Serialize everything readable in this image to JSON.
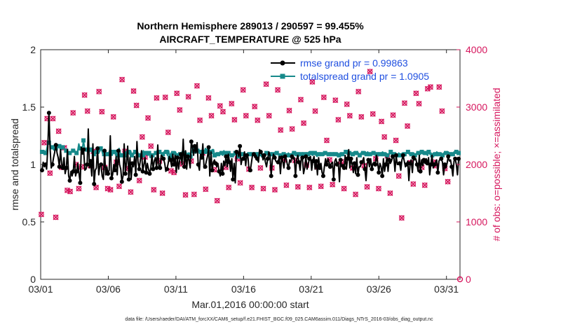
{
  "chart_data": {
    "type": "line",
    "title_line1": "Northern Hemisphere 289013 / 290597 = 99.455%",
    "title_line2": "AIRCRAFT_TEMPERATURE @ 525 hPa",
    "xlabel": "Mar.01,2016 00:00:00 start",
    "ylabel_left": "rmse and totalspread",
    "ylabel_right": "# of obs: o=possible; ×=assimilated",
    "footer": "data file: /Users/raeder/DAI/ATM_forcXX/CAM6_setup/f.e21.FHIST_BGC.f09_025.CAM6assim.011/Diags_NTrS_2016-03/obs_diag_output.nc",
    "x_ticks": [
      {
        "day": 0,
        "label": "03/01"
      },
      {
        "day": 5,
        "label": "03/06"
      },
      {
        "day": 10,
        "label": "03/11"
      },
      {
        "day": 15,
        "label": "03/16"
      },
      {
        "day": 20,
        "label": "03/21"
      },
      {
        "day": 25,
        "label": "03/26"
      },
      {
        "day": 30,
        "label": "03/31"
      }
    ],
    "xlim": [
      0,
      31
    ],
    "ylim_left": [
      0,
      2
    ],
    "yticks_left": [
      "0",
      "0.5",
      "1",
      "1.5",
      "2"
    ],
    "ylim_right": [
      0,
      4000
    ],
    "yticks_right": [
      "0",
      "1000",
      "2000",
      "3000",
      "4000"
    ],
    "colors": {
      "rmse": "#000000",
      "spread": "#16898a",
      "obs": "#d6175e",
      "legend_text": "#1f4fe0"
    },
    "series": [
      {
        "name": "rmse grand pr = 0.99863",
        "values": [
          0.95,
          1.02,
          0.98,
          1.0,
          0.96,
          1.15,
          1.45,
          1.13,
          0.97,
          1.0,
          1.06,
          1.11,
          1.17,
          1.1,
          1.06,
          0.98,
          1.13,
          1.0,
          0.97,
          1.06,
          0.92,
          0.97,
          1.13,
          0.9,
          0.86,
          0.94,
          0.9,
          0.94,
          1.07,
          0.9,
          0.94,
          1.01,
          0.92,
          0.84,
          1.15,
          1.09,
          1.13,
          0.95,
          0.96,
          1.0,
          1.31,
          0.97,
          1.03,
          0.9,
          1.18,
          0.83,
          0.95,
          0.97,
          1.14,
          0.91,
          0.99,
          1.0,
          0.9,
          0.87,
          1.12,
          0.91,
          0.98,
          0.92,
          0.95,
          1.25,
          0.88,
          0.91,
          1.0,
          0.95,
          1.07,
          0.91,
          1.12,
          1.0,
          0.96,
          0.85,
          0.9,
          1.18,
          0.92,
          1.02,
          1.16,
          0.87,
          1.06,
          0.87,
          1.01,
          0.98,
          1.07,
          0.91,
          1.2,
          1.02,
          0.96,
          1.04,
          1.12,
          0.94,
          1.0,
          1.06,
          0.93,
          1.01,
          0.96,
          0.92,
          0.97,
          1.08,
          0.96,
          1.03,
          1.06,
          0.97,
          1.17,
          0.98,
          0.97,
          1.08,
          1.07,
          1.05,
          1.01,
          0.94,
          0.96,
          1.01,
          1.07,
          1.04,
          0.98,
          1.09,
          1.0,
          1.08,
          0.93,
          1.06,
          0.96,
          1.04,
          1.09,
          1.0,
          1.22,
          0.98,
          1.12,
          0.96,
          1.07,
          1.04,
          0.97,
          1.2,
          1.15,
          1.08,
          1.16,
          1.1,
          1.19,
          1.0,
          0.95,
          1.09,
          1.06,
          1.18,
          0.97,
          0.98,
          1.03,
          1.07,
          1.15,
          0.9,
          1.11,
          0.95,
          1.02,
          1.04,
          1.01,
          0.98,
          1.01,
          0.94,
          0.9,
          1.01,
          0.92,
          1.03,
          0.99,
          1.07,
          0.98,
          1.09,
          1.02,
          0.94,
          1.05,
          0.87,
          1.01,
          0.84,
          1.11,
          1.12,
          1.07,
          1.16,
          1.0,
          1.05,
          1.05,
          1.11,
          0.99,
          1.08,
          1.06,
          0.94,
          0.95,
          1.02,
          1.09,
          1.09,
          1.06,
          1.08,
          1.05,
          1.02,
          1.13,
          1.11,
          1.09,
          1.04,
          1.08,
          1.02,
          0.98,
          1.05,
          1.11,
          1.08,
          0.9,
          1.04,
          1.09,
          1.06,
          1.03,
          1.02,
          1.02,
          1.07,
          0.92,
          1.06,
          1.03,
          0.97,
          1.07,
          1.05,
          1.0,
          0.97,
          1.04,
          1.02,
          1.07,
          1.05,
          1.06,
          0.9,
          1.04,
          1.08,
          1.02,
          0.95,
          1.05,
          1.06,
          0.92,
          0.97,
          1.07,
          0.96,
          1.0,
          1.05,
          1.07,
          0.95,
          1.03,
          1.07,
          0.96,
          1.03,
          0.91,
          1.06,
          0.97,
          1.01,
          0.93,
          0.9,
          0.98,
          1.05,
          1.0,
          1.05,
          1.02,
          0.98,
          1.01,
          1.02,
          0.87,
          1.03,
          1.05,
          1.0,
          1.02,
          0.85,
          1.04,
          0.98,
          1.0,
          0.97,
          1.08,
          0.96,
          1.05,
          1.13,
          0.97,
          1.05,
          1.0,
          0.93,
          1.01,
          0.92,
          1.06,
          0.91,
          0.98,
          0.98,
          1.02,
          1.03,
          1.06,
          0.96,
          0.86,
          1.01,
          1.04,
          0.98,
          1.05,
          0.96,
          1.01,
          1.02,
          1.0,
          1.08,
          1.02,
          0.93,
          1.01,
          0.98,
          0.9,
          1.05,
          0.94,
          1.0,
          1.06,
          0.94,
          1.04,
          1.01,
          1.03,
          1.07,
          1.07,
          0.94,
          1.08,
          1.0,
          1.0,
          1.01,
          0.95,
          1.04,
          1.08,
          1.03,
          0.98,
          1.0,
          1.03,
          0.86,
          1.01,
          1.04,
          0.93,
          1.06,
          1.04,
          1.05,
          1.0,
          0.94,
          1.08,
          0.94,
          1.04,
          0.99,
          1.04,
          1.01,
          1.05,
          1.01,
          1.06,
          0.91,
          1.0,
          1.08,
          0.97,
          1.0,
          1.02,
          1.04,
          0.93,
          1.03,
          1.05,
          1.05,
          1.02,
          0.91,
          1.0,
          0.97,
          1.01,
          1.07,
          1.03,
          1.04,
          0.98,
          0.9,
          1.03,
          1.05,
          1.0,
          0.91,
          1.05
        ]
      },
      {
        "name": "totalspread grand pr = 1.0905",
        "values": [
          1.11,
          1.1,
          1.12,
          1.1,
          1.13,
          1.18,
          1.19,
          1.18,
          1.14,
          1.15,
          1.13,
          1.12,
          1.14,
          1.15,
          1.17,
          1.16,
          1.13,
          1.13,
          1.15,
          1.14,
          1.12,
          1.12,
          1.12,
          1.11,
          1.1,
          1.11,
          1.11,
          1.12,
          1.13,
          1.11,
          1.1,
          1.12,
          1.18,
          1.14,
          1.13,
          1.13,
          1.21,
          1.14,
          1.13,
          1.13,
          1.12,
          1.11,
          1.13,
          1.11,
          1.11,
          1.09,
          1.12,
          1.11,
          1.11,
          1.1,
          1.11,
          1.14,
          1.12,
          1.08,
          1.09,
          1.11,
          1.1,
          1.09,
          1.1,
          1.13,
          1.11,
          1.08,
          1.11,
          1.11,
          1.08,
          1.1,
          1.08,
          1.14,
          1.1,
          1.08,
          1.07,
          1.07,
          1.08,
          1.11,
          1.09,
          1.11,
          1.09,
          1.12,
          1.08,
          1.1,
          1.09,
          1.11,
          1.09,
          1.11,
          1.08,
          1.09,
          1.09,
          1.08,
          1.12,
          1.07,
          1.1,
          1.1,
          1.08,
          1.1,
          1.06,
          1.08,
          1.08,
          1.09,
          1.1,
          1.1,
          1.12,
          1.09,
          1.11,
          1.1,
          1.09,
          1.09,
          1.11,
          1.12,
          1.11,
          1.08,
          1.12,
          1.06,
          1.1,
          1.07,
          1.1,
          1.09,
          1.11,
          1.08,
          1.07,
          1.09,
          1.09,
          1.08,
          1.08,
          1.1,
          1.1,
          1.11,
          1.08,
          1.1,
          1.1,
          1.07,
          1.12,
          1.1,
          1.13,
          1.1,
          1.12,
          1.12,
          1.12,
          1.12,
          1.11,
          1.11,
          1.1,
          1.11,
          1.14,
          1.1,
          1.12,
          1.1,
          1.09,
          1.11,
          1.13,
          1.13,
          1.08,
          1.1,
          1.1,
          1.09,
          1.09,
          1.09,
          1.1,
          1.08,
          1.12,
          1.1,
          1.11,
          1.1,
          1.1,
          1.08,
          1.08,
          1.08,
          1.09,
          1.08,
          1.1,
          1.07,
          1.09,
          1.07,
          1.1,
          1.08,
          1.09,
          1.09,
          1.08,
          1.08,
          1.09,
          1.1,
          1.09,
          1.08,
          1.09,
          1.09,
          1.1,
          1.07,
          1.09,
          1.07,
          1.07,
          1.09,
          1.08,
          1.08,
          1.08,
          1.08,
          1.1,
          1.1,
          1.09,
          1.07,
          1.09,
          1.08,
          1.09,
          1.09,
          1.1,
          1.11,
          1.1,
          1.09,
          1.09,
          1.08,
          1.08,
          1.09,
          1.09,
          1.09,
          1.09,
          1.08,
          1.1,
          1.09,
          1.08,
          1.09,
          1.11,
          1.1,
          1.08,
          1.1,
          1.09,
          1.07,
          1.1,
          1.09,
          1.07,
          1.09,
          1.09,
          1.1,
          1.1,
          1.09,
          1.11,
          1.1,
          1.1,
          1.08,
          1.09,
          1.1,
          1.08,
          1.07,
          1.09,
          1.1,
          1.08,
          1.09,
          1.09,
          1.08,
          1.1,
          1.09,
          1.1,
          1.09,
          1.08,
          1.1,
          1.09,
          1.08,
          1.1,
          1.09,
          1.1,
          1.1,
          1.08,
          1.1,
          1.09,
          1.09,
          1.1,
          1.1,
          1.11,
          1.09,
          1.09,
          1.1,
          1.09,
          1.09,
          1.09,
          1.11,
          1.1,
          1.1,
          1.09,
          1.1,
          1.08,
          1.1,
          1.09,
          1.1,
          1.09,
          1.11,
          1.09,
          1.11,
          1.08,
          1.09,
          1.08,
          1.1,
          1.1,
          1.09,
          1.08,
          1.09,
          1.1,
          1.1,
          1.09,
          1.1,
          1.11,
          1.09,
          1.09,
          1.1,
          1.08,
          1.09,
          1.09,
          1.11,
          1.08,
          1.09,
          1.09,
          1.1,
          1.09,
          1.08,
          1.1,
          1.09,
          1.08,
          1.1,
          1.1,
          1.09,
          1.1,
          1.1,
          1.11,
          1.09,
          1.1,
          1.09,
          1.09,
          1.1,
          1.08,
          1.09,
          1.11,
          1.1,
          1.1,
          1.09,
          1.11,
          1.09,
          1.09,
          1.1,
          1.09,
          1.08,
          1.11,
          1.09,
          1.1,
          1.08,
          1.1,
          1.09,
          1.09,
          1.11,
          1.1,
          1.09,
          1.09,
          1.1,
          1.08,
          1.1,
          1.09,
          1.1,
          1.1,
          1.11,
          1.09,
          1.1,
          1.1,
          1.09,
          1.11,
          1.1,
          1.11,
          1.1,
          1.1
        ]
      },
      {
        "name": "obs_assimilated",
        "values": [
          1130,
          2380,
          2800,
          1850,
          2800,
          1080,
          2580,
          1950,
          2290,
          1550,
          1530,
          2900,
          2000,
          1580,
          1960,
          3210,
          2930,
          1980,
          2230,
          1600,
          3270,
          2920,
          1950,
          1580,
          1560,
          2830,
          2040,
          1620,
          3480,
          2230,
          1930,
          1520,
          3280,
          3030,
          1720,
          2480,
          2130,
          2810,
          2320,
          1560,
          3160,
          2060,
          1500,
          3170,
          2560,
          1890,
          1860,
          3240,
          2950,
          2010,
          1470,
          3180,
          2060,
          1480,
          3370,
          2770,
          2200,
          1570,
          3160,
          2850,
          1910,
          1370,
          3020,
          2920,
          1950,
          1600,
          3060,
          2780,
          2100,
          1680,
          3300,
          2850,
          1920,
          1600,
          3010,
          2770,
          1940,
          1580,
          3400,
          2850,
          1940,
          1560,
          3300,
          2600,
          2080,
          1640,
          2940,
          2620,
          2070,
          1610,
          3130,
          2720,
          1990,
          1600,
          3440,
          2930,
          1960,
          1620,
          3170,
          2420,
          2080,
          1650,
          3120,
          2780,
          2050,
          1580,
          3050,
          2850,
          1940,
          1480,
          3270,
          2830,
          1980,
          1610,
          3620,
          2880,
          2100,
          1580,
          2750,
          2480,
          2150,
          1500,
          2860,
          2420,
          1800,
          1070,
          3070,
          2670,
          2030,
          1660,
          3240,
          3060,
          1950,
          1640,
          3320,
          3350,
          2040,
          1980,
          3350,
          2930,
          1930,
          1700
        ]
      }
    ]
  }
}
